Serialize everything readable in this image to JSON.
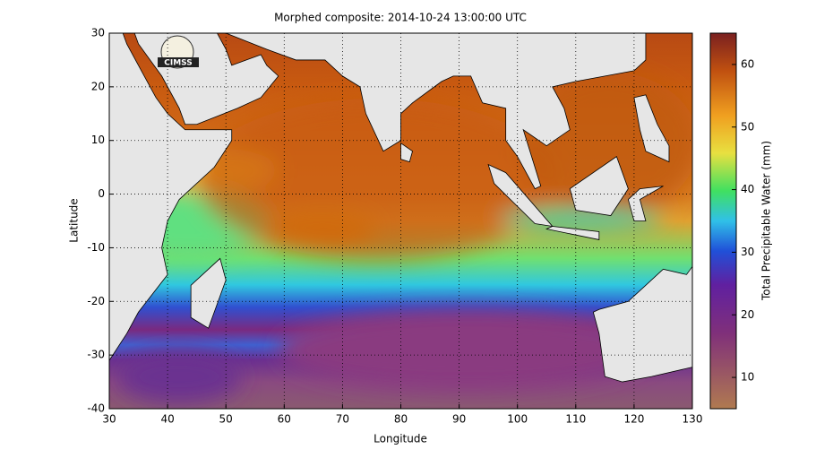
{
  "chart_data": {
    "type": "heatmap",
    "title": "Morphed composite: 2014-10-24 13:00:00 UTC",
    "xlabel": "Longitude",
    "ylabel": "Latitude",
    "xlim": [
      30,
      130
    ],
    "xticks": [
      30,
      40,
      50,
      60,
      70,
      80,
      90,
      100,
      110,
      120,
      130
    ],
    "ylim": [
      -40,
      30
    ],
    "yticks": [
      -40,
      -30,
      -20,
      -10,
      0,
      10,
      20,
      30
    ],
    "grid": true,
    "colorbar_label": "Total Precipitable Water (mm)",
    "clim": [
      5,
      65
    ],
    "cticks": [
      10,
      20,
      30,
      40,
      50,
      60
    ],
    "logo": "CIMSS"
  }
}
